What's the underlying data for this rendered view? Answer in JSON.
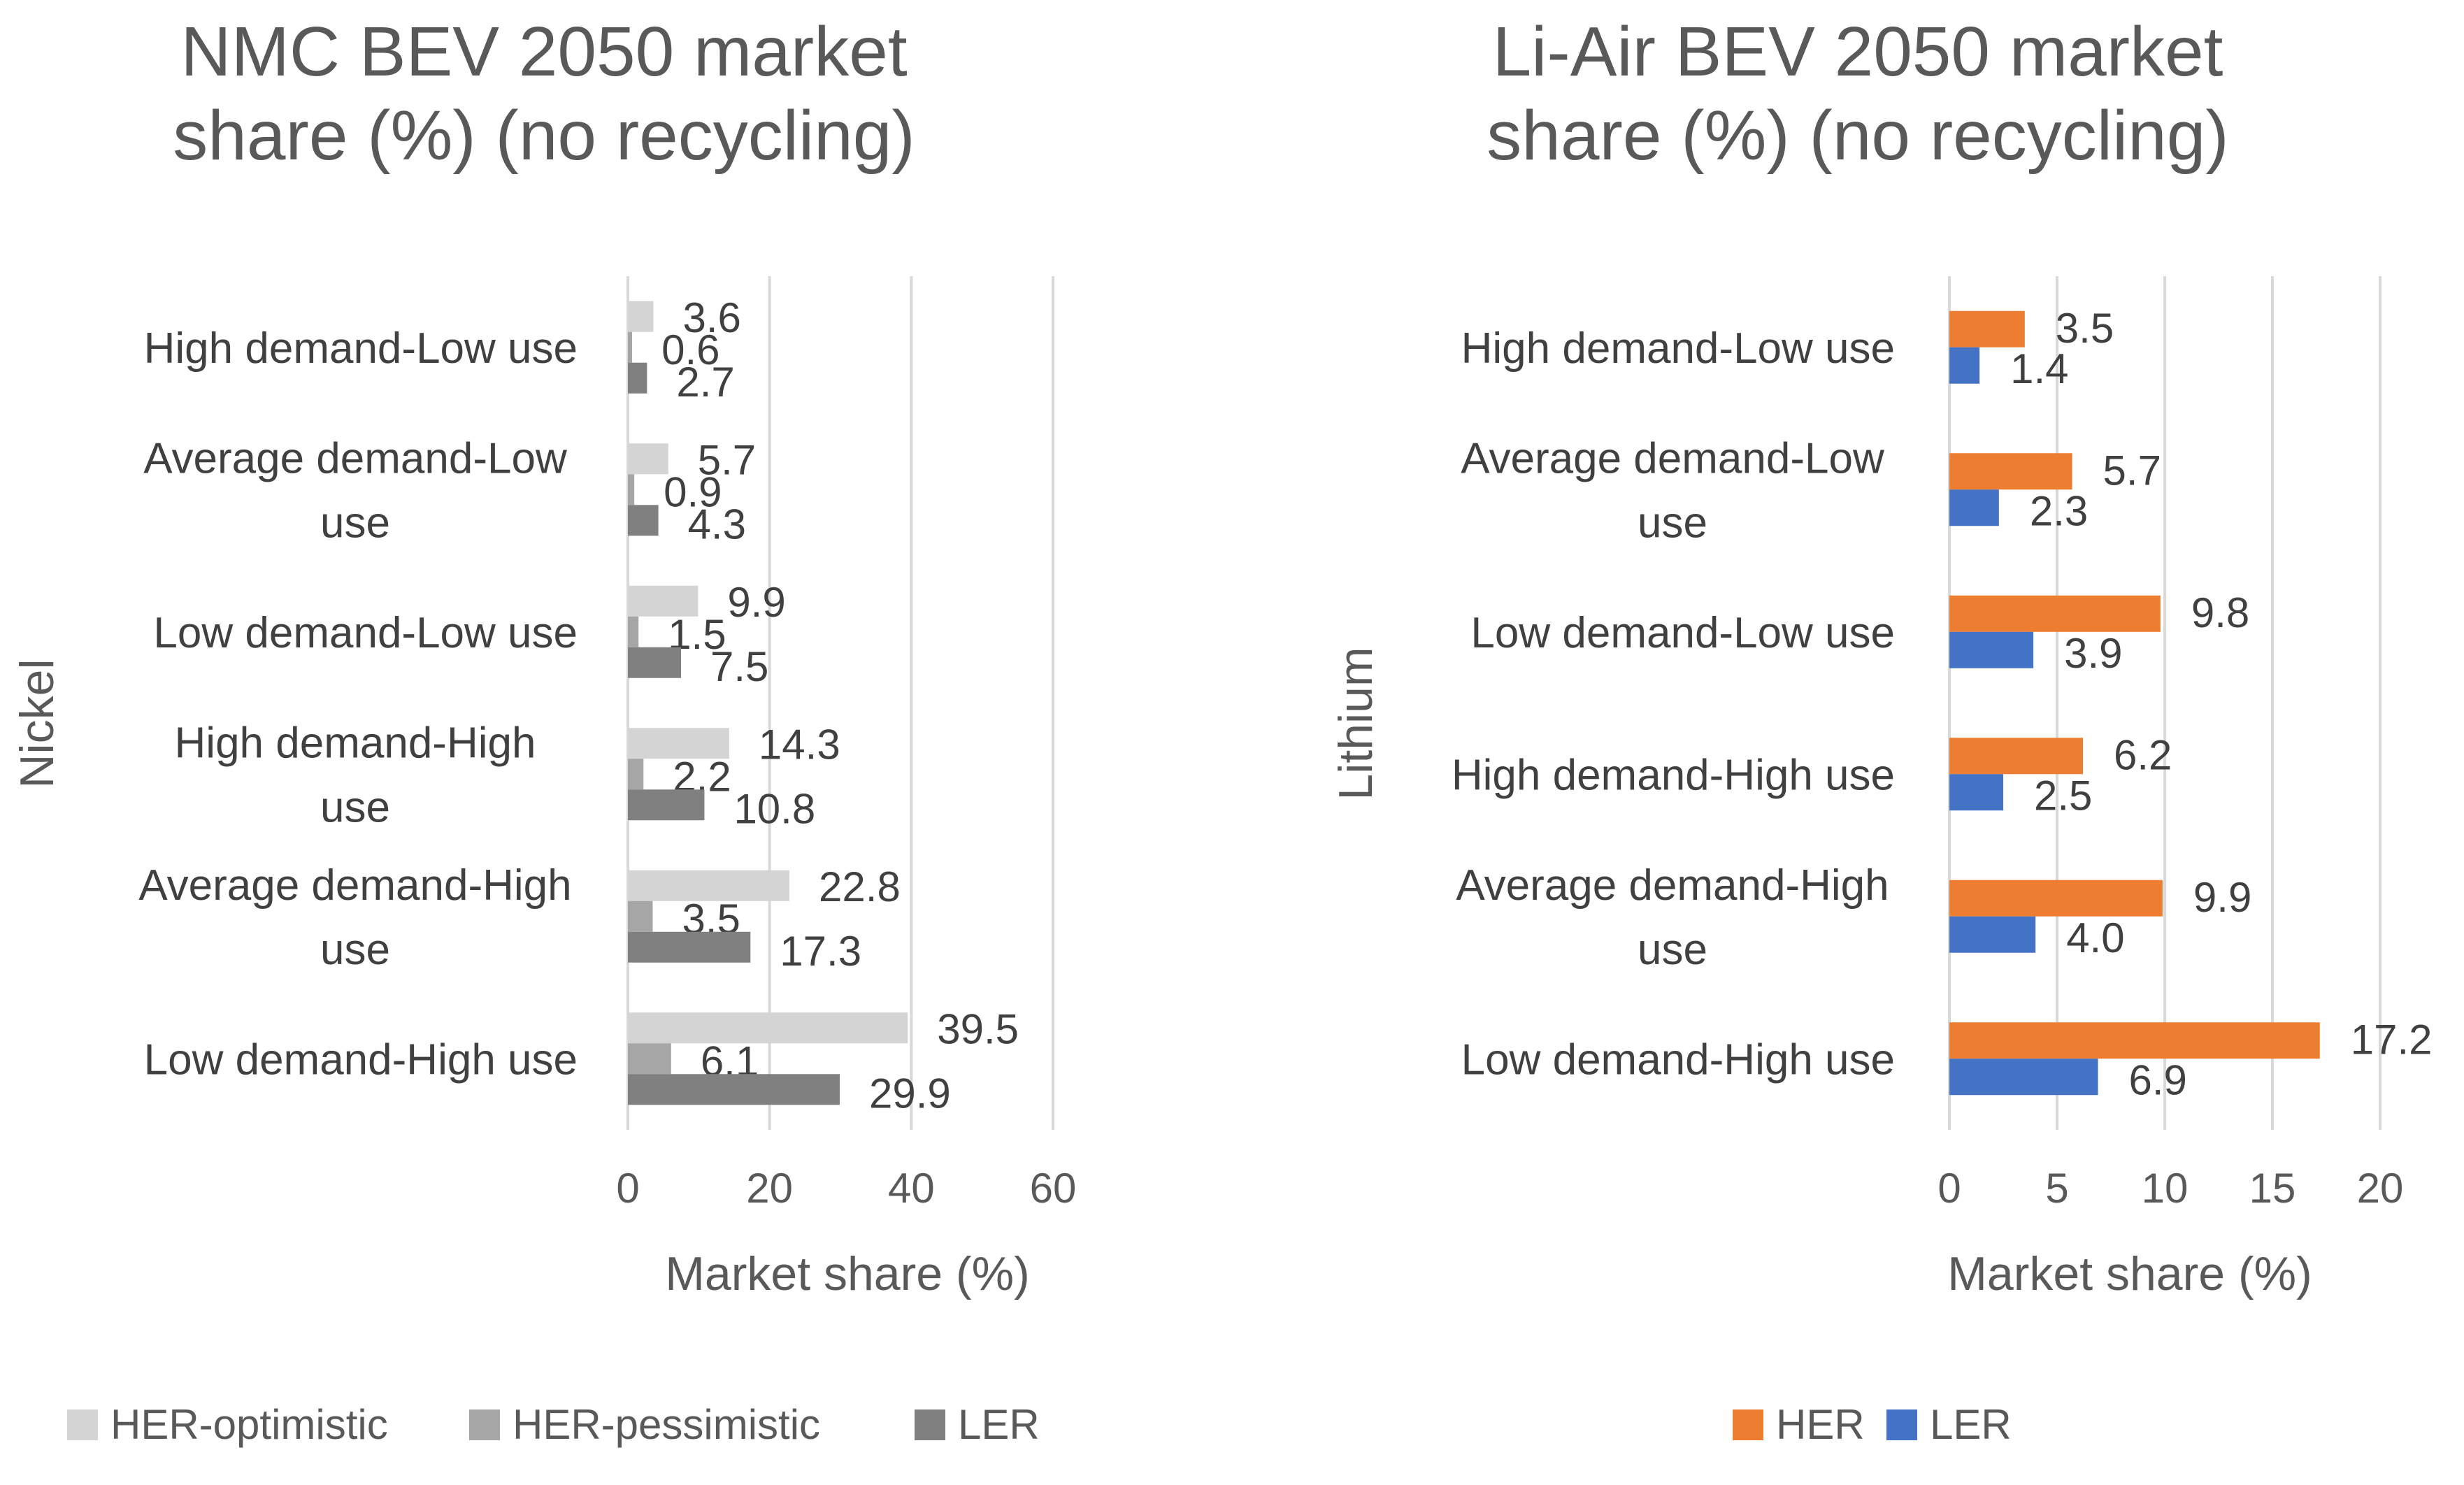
{
  "chart_data": [
    {
      "type": "bar",
      "orientation": "horizontal",
      "title": [
        "NMC BEV 2050 market",
        "share (%) (no recycling)"
      ],
      "xlabel": "Market share (%)",
      "ylabel": "Nickel",
      "xlim": [
        0,
        60
      ],
      "xticks": [
        0,
        20,
        40,
        60
      ],
      "grid": true,
      "legend_position": "bottom",
      "categories": [
        [
          "High demand-Low use"
        ],
        [
          "Average demand-Low",
          "use"
        ],
        [
          "Low demand-Low use"
        ],
        [
          "High demand-High",
          "use"
        ],
        [
          "Average demand-High",
          "use"
        ],
        [
          "Low demand-High use"
        ]
      ],
      "series": [
        {
          "name": "HER-optimistic",
          "color": "#d4d4d4",
          "values": [
            3.6,
            5.7,
            9.9,
            14.3,
            22.8,
            39.5
          ]
        },
        {
          "name": "HER-pessimistic",
          "color": "#a6a6a6",
          "values": [
            0.6,
            0.9,
            1.5,
            2.2,
            3.5,
            6.1
          ]
        },
        {
          "name": "LER",
          "color": "#808080",
          "values": [
            2.7,
            4.3,
            7.5,
            10.8,
            17.3,
            29.9
          ]
        }
      ]
    },
    {
      "type": "bar",
      "orientation": "horizontal",
      "title": [
        "Li-Air BEV 2050 market",
        "share (%) (no recycling)"
      ],
      "xlabel": "Market share (%)",
      "ylabel": "Lithium",
      "xlim": [
        0,
        20
      ],
      "xticks": [
        0,
        5,
        10,
        15,
        20
      ],
      "grid": true,
      "legend_position": "bottom",
      "categories": [
        [
          "High demand-Low use"
        ],
        [
          "Average demand-Low",
          "use"
        ],
        [
          "Low demand-Low use"
        ],
        [
          "High demand-High use"
        ],
        [
          "Average demand-High",
          "use"
        ],
        [
          "Low demand-High use"
        ]
      ],
      "series": [
        {
          "name": "HER",
          "color": "#ed7d31",
          "values": [
            3.5,
            5.7,
            9.8,
            6.2,
            9.9,
            17.2
          ]
        },
        {
          "name": "LER",
          "color": "#4472c4",
          "values": [
            1.4,
            2.3,
            3.9,
            2.5,
            4.0,
            6.9
          ]
        }
      ]
    }
  ]
}
